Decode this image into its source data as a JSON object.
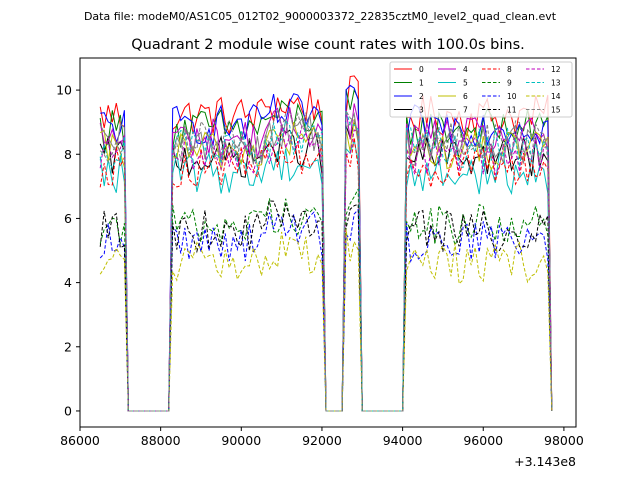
{
  "figure": {
    "suptitle": "Data file: modeM0/AS1C05_012T02_9000003372_22835cztM0_level2_quad_clean.evt"
  },
  "chart_data": {
    "type": "line",
    "title": "Quadrant 2 module wise count rates with 100.0s bins.",
    "xlabel": "",
    "ylabel": "",
    "x_offset_label": "+3.143e8",
    "xlim": [
      86000,
      98300
    ],
    "ylim": [
      -0.5,
      11
    ],
    "xticks": [
      86000,
      88000,
      90000,
      92000,
      94000,
      96000,
      98000
    ],
    "xtick_labels": [
      "86000",
      "88000",
      "90000",
      "92000",
      "94000",
      "96000",
      "98000"
    ],
    "yticks": [
      0,
      2,
      4,
      6,
      8,
      10
    ],
    "ytick_labels": [
      "0",
      "2",
      "4",
      "6",
      "8",
      "10"
    ],
    "grid": false,
    "legend_position": "top-right",
    "legend_columns": 4,
    "bin_size_s": 100,
    "segments": [
      {
        "start": 86500,
        "end": 87100
      },
      {
        "start": 88300,
        "end": 92000
      },
      {
        "start": 92600,
        "end": 92900
      },
      {
        "start": 94100,
        "end": 97600
      }
    ],
    "gaps": [
      {
        "start": 87100,
        "end": 88300
      },
      {
        "start": 92000,
        "end": 92600
      },
      {
        "start": 92900,
        "end": 94100
      }
    ],
    "series": [
      {
        "name": "0",
        "color": "#ff0000",
        "dash": "solid",
        "mean_rate": 9.2
      },
      {
        "name": "1",
        "color": "#008000",
        "dash": "solid",
        "mean_rate": 8.8
      },
      {
        "name": "2",
        "color": "#0000ff",
        "dash": "solid",
        "mean_rate": 8.9
      },
      {
        "name": "3",
        "color": "#000000",
        "dash": "solid",
        "mean_rate": 7.9
      },
      {
        "name": "4",
        "color": "#bf00bf",
        "dash": "solid",
        "mean_rate": 8.5
      },
      {
        "name": "5",
        "color": "#00bfbf",
        "dash": "solid",
        "mean_rate": 7.4
      },
      {
        "name": "6",
        "color": "#bfbf00",
        "dash": "solid",
        "mean_rate": 8.1
      },
      {
        "name": "7",
        "color": "#808080",
        "dash": "solid",
        "mean_rate": 8.3
      },
      {
        "name": "8",
        "color": "#ff0000",
        "dash": "dashed",
        "mean_rate": 7.6
      },
      {
        "name": "9",
        "color": "#008000",
        "dash": "dashed",
        "mean_rate": 5.8
      },
      {
        "name": "10",
        "color": "#0000ff",
        "dash": "dashed",
        "mean_rate": 5.3
      },
      {
        "name": "11",
        "color": "#000000",
        "dash": "dashed",
        "mean_rate": 5.6
      },
      {
        "name": "12",
        "color": "#bf00bf",
        "dash": "dashed",
        "mean_rate": 8.0
      },
      {
        "name": "13",
        "color": "#00bfbf",
        "dash": "dashed",
        "mean_rate": 8.2
      },
      {
        "name": "14",
        "color": "#bfbf00",
        "dash": "dashed",
        "mean_rate": 4.6
      },
      {
        "name": "15",
        "color": "#808080",
        "dash": "dashed",
        "mean_rate": 8.4
      }
    ]
  }
}
